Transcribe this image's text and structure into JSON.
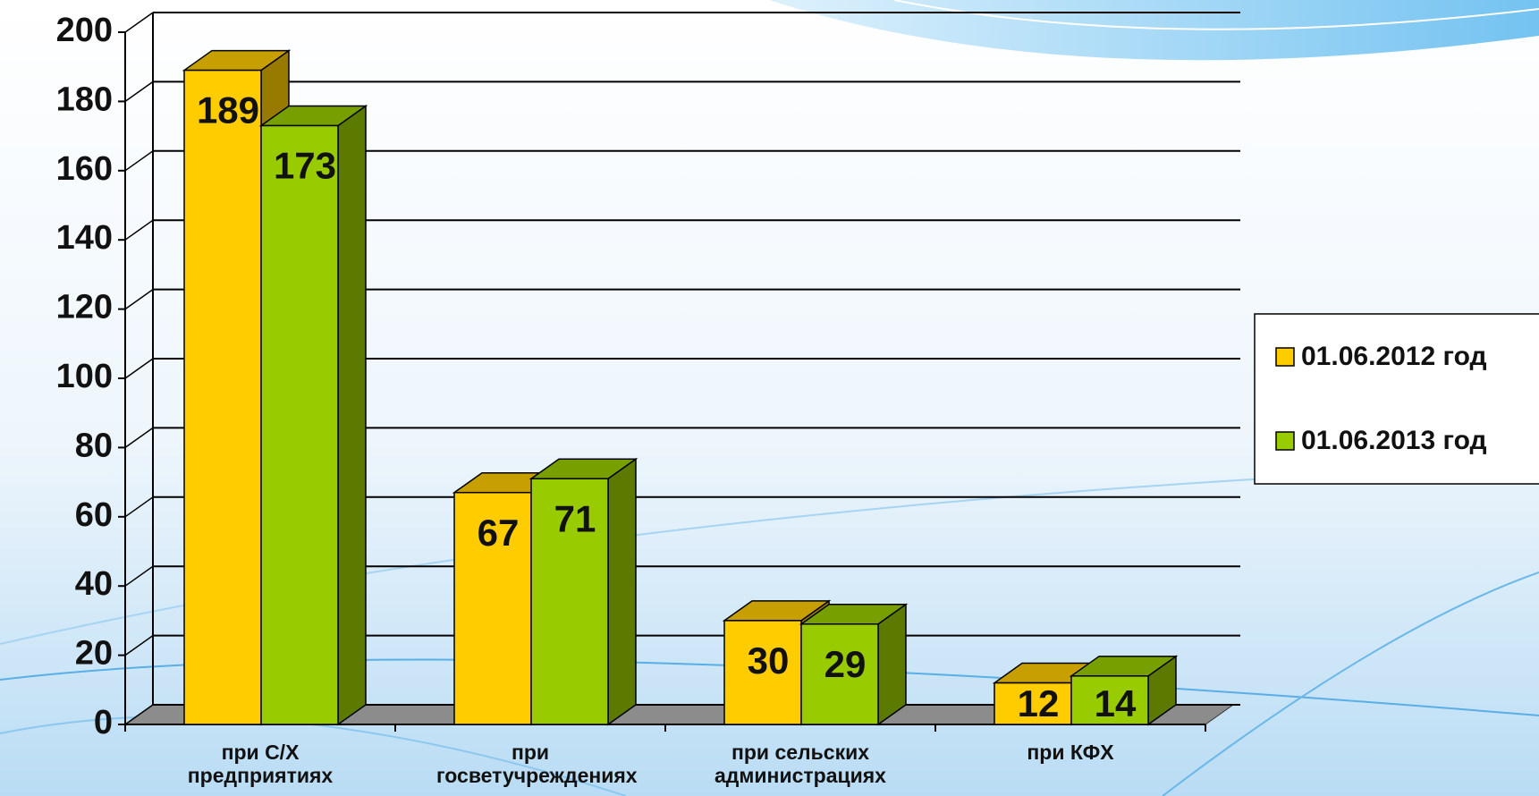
{
  "chart_data": {
    "type": "bar3d",
    "categories": [
      "при С/Х предприятиях",
      "при госветучреждениях",
      "при сельских администрациях",
      "при КФХ"
    ],
    "series": [
      {
        "name": "01.06.2012 год",
        "color": "#ffcc00",
        "values": [
          189,
          67,
          30,
          12
        ]
      },
      {
        "name": "01.06.2013 год",
        "color": "#99cc00",
        "values": [
          173,
          71,
          29,
          14
        ]
      }
    ],
    "ylim": [
      0,
      200
    ],
    "yticks": [
      0,
      20,
      40,
      60,
      80,
      100,
      120,
      140,
      160,
      180,
      200
    ],
    "grid": true,
    "legend": "right"
  }
}
